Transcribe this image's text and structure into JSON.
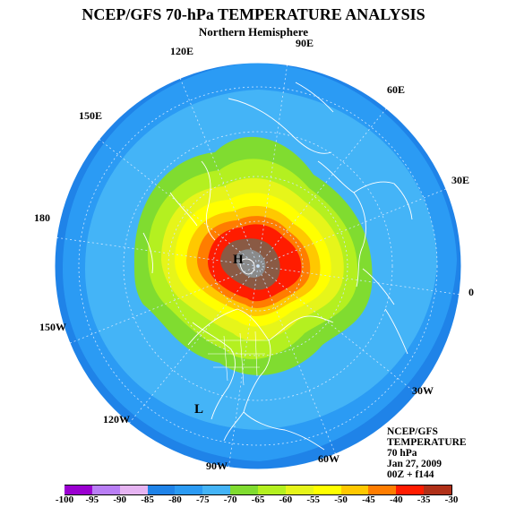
{
  "title": "NCEP/GFS 70-hPa TEMPERATURE ANALYSIS",
  "subtitle": "Northern Hemisphere",
  "longitude_labels": [
    "90E",
    "60E",
    "120E",
    "150E",
    "30E",
    "180",
    "0",
    "150W",
    "30W",
    "120W",
    "60W",
    "90W"
  ],
  "features": {
    "high": "H",
    "low": "L"
  },
  "info": [
    "NCEP/GFS",
    "TEMPERATURE",
    "70 hPa",
    "Jan 27, 2009",
    "00Z + f144"
  ],
  "legend": {
    "ticks": [
      "-100",
      "-95",
      "-90",
      "-85",
      "-80",
      "-75",
      "-70",
      "-65",
      "-60",
      "-55",
      "-50",
      "-45",
      "-40",
      "-35",
      "-30"
    ],
    "colors": [
      "#9a00d0",
      "#b97ef5",
      "#e6b4f2",
      "#1f83e8",
      "#2b9bf4",
      "#44b4f7",
      "#80dc30",
      "#b4f020",
      "#e6f51a",
      "#ffff00",
      "#ffc800",
      "#ff7d00",
      "#ff1c00",
      "#b03018",
      "#8a8a8a"
    ]
  },
  "colors": {
    "ocean": "#1f88ee",
    "coastline": "#ffffff",
    "gridline": "#cfe6ff"
  }
}
